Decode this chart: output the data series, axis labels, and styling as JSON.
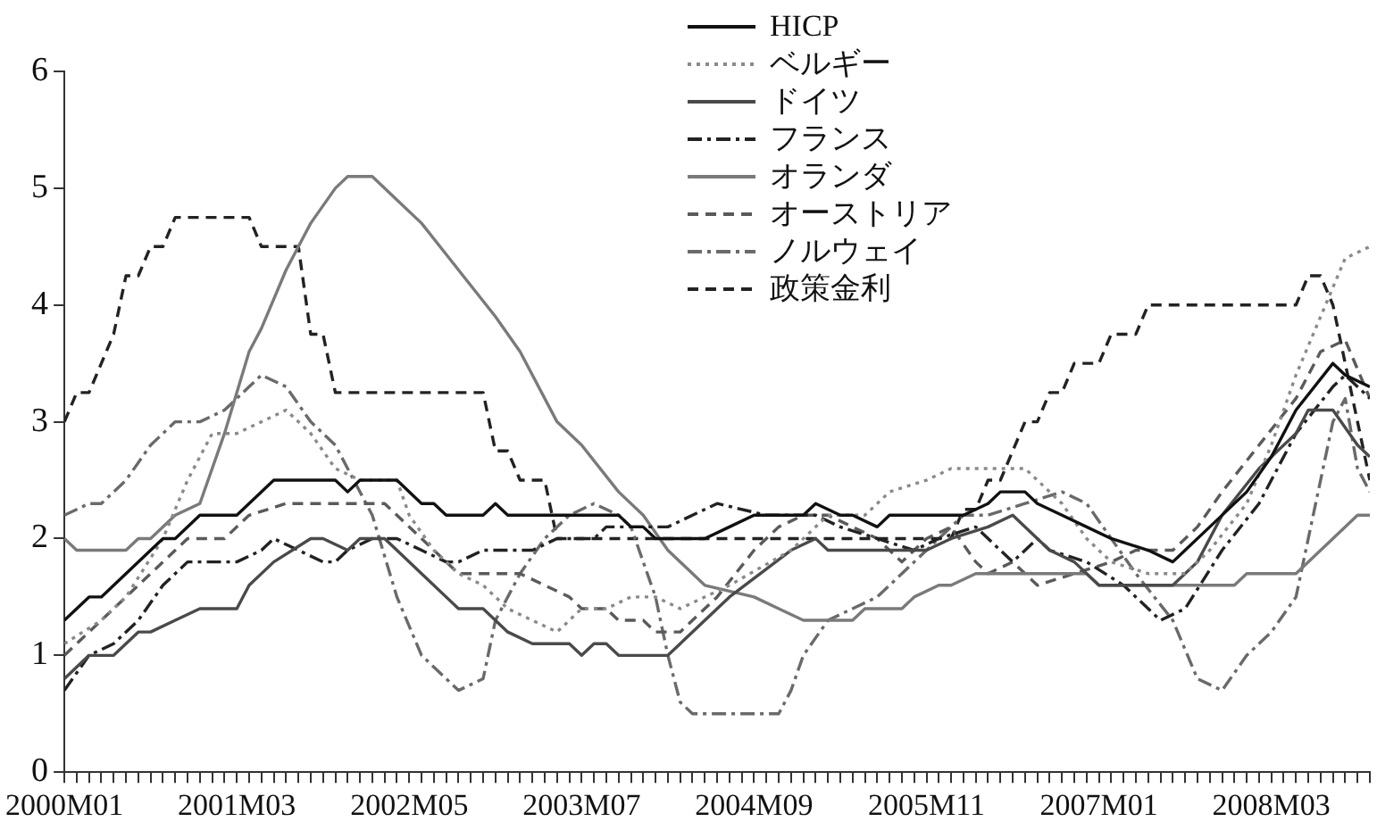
{
  "chart_data": {
    "type": "line",
    "legend": "top",
    "grid": false,
    "marker": "none",
    "xlim": [
      "2000-01",
      "2008-11"
    ],
    "ylim": [
      0,
      6
    ],
    "yticks": [
      0,
      1,
      2,
      3,
      4,
      5,
      6
    ],
    "xticks": [
      {
        "value": "2000-01",
        "label": "2000M01"
      },
      {
        "value": "2000-02",
        "label": null
      },
      {
        "value": "2000-03",
        "label": null
      },
      {
        "value": "2000-04",
        "label": null
      },
      {
        "value": "2000-05",
        "label": null
      },
      {
        "value": "2000-06",
        "label": null
      },
      {
        "value": "2000-07",
        "label": null
      },
      {
        "value": "2000-08",
        "label": null
      },
      {
        "value": "2000-09",
        "label": null
      },
      {
        "value": "2000-10",
        "label": null
      },
      {
        "value": "2000-11",
        "label": null
      },
      {
        "value": "2000-12",
        "label": null
      },
      {
        "value": "2001-01",
        "label": null
      },
      {
        "value": "2001-02",
        "label": null
      },
      {
        "value": "2001-03",
        "label": "2001M03"
      },
      {
        "value": "2001-04",
        "label": null
      },
      {
        "value": "2001-05",
        "label": null
      },
      {
        "value": "2001-06",
        "label": null
      },
      {
        "value": "2001-07",
        "label": null
      },
      {
        "value": "2001-08",
        "label": null
      },
      {
        "value": "2001-09",
        "label": null
      },
      {
        "value": "2001-10",
        "label": null
      },
      {
        "value": "2001-11",
        "label": null
      },
      {
        "value": "2001-12",
        "label": null
      },
      {
        "value": "2002-01",
        "label": null
      },
      {
        "value": "2002-02",
        "label": null
      },
      {
        "value": "2002-03",
        "label": null
      },
      {
        "value": "2002-04",
        "label": null
      },
      {
        "value": "2002-05",
        "label": "2002M05"
      },
      {
        "value": "2002-06",
        "label": null
      },
      {
        "value": "2002-07",
        "label": null
      },
      {
        "value": "2002-08",
        "label": null
      },
      {
        "value": "2002-09",
        "label": null
      },
      {
        "value": "2002-10",
        "label": null
      },
      {
        "value": "2002-11",
        "label": null
      },
      {
        "value": "2002-12",
        "label": null
      },
      {
        "value": "2003-01",
        "label": null
      },
      {
        "value": "2003-02",
        "label": null
      },
      {
        "value": "2003-03",
        "label": null
      },
      {
        "value": "2003-04",
        "label": null
      },
      {
        "value": "2003-05",
        "label": null
      },
      {
        "value": "2003-06",
        "label": null
      },
      {
        "value": "2003-07",
        "label": "2003M07"
      },
      {
        "value": "2003-08",
        "label": null
      },
      {
        "value": "2003-09",
        "label": null
      },
      {
        "value": "2003-10",
        "label": null
      },
      {
        "value": "2003-11",
        "label": null
      },
      {
        "value": "2003-12",
        "label": null
      },
      {
        "value": "2004-01",
        "label": null
      },
      {
        "value": "2004-02",
        "label": null
      },
      {
        "value": "2004-03",
        "label": null
      },
      {
        "value": "2004-04",
        "label": null
      },
      {
        "value": "2004-05",
        "label": null
      },
      {
        "value": "2004-06",
        "label": null
      },
      {
        "value": "2004-07",
        "label": null
      },
      {
        "value": "2004-08",
        "label": null
      },
      {
        "value": "2004-09",
        "label": "2004M09"
      },
      {
        "value": "2004-10",
        "label": null
      },
      {
        "value": "2004-11",
        "label": null
      },
      {
        "value": "2004-12",
        "label": null
      },
      {
        "value": "2005-01",
        "label": null
      },
      {
        "value": "2005-02",
        "label": null
      },
      {
        "value": "2005-03",
        "label": null
      },
      {
        "value": "2005-04",
        "label": null
      },
      {
        "value": "2005-05",
        "label": null
      },
      {
        "value": "2005-06",
        "label": null
      },
      {
        "value": "2005-07",
        "label": null
      },
      {
        "value": "2005-08",
        "label": null
      },
      {
        "value": "2005-09",
        "label": null
      },
      {
        "value": "2005-10",
        "label": null
      },
      {
        "value": "2005-11",
        "label": "2005M11"
      },
      {
        "value": "2005-12",
        "label": null
      },
      {
        "value": "2006-01",
        "label": null
      },
      {
        "value": "2006-02",
        "label": null
      },
      {
        "value": "2006-03",
        "label": null
      },
      {
        "value": "2006-04",
        "label": null
      },
      {
        "value": "2006-05",
        "label": null
      },
      {
        "value": "2006-06",
        "label": null
      },
      {
        "value": "2006-07",
        "label": null
      },
      {
        "value": "2006-08",
        "label": null
      },
      {
        "value": "2006-09",
        "label": null
      },
      {
        "value": "2006-10",
        "label": null
      },
      {
        "value": "2006-11",
        "label": null
      },
      {
        "value": "2006-12",
        "label": null
      },
      {
        "value": "2007-01",
        "label": "2007M01"
      },
      {
        "value": "2007-02",
        "label": null
      },
      {
        "value": "2007-03",
        "label": null
      },
      {
        "value": "2007-04",
        "label": null
      },
      {
        "value": "2007-05",
        "label": null
      },
      {
        "value": "2007-06",
        "label": null
      },
      {
        "value": "2007-07",
        "label": null
      },
      {
        "value": "2007-08",
        "label": null
      },
      {
        "value": "2007-09",
        "label": null
      },
      {
        "value": "2007-10",
        "label": null
      },
      {
        "value": "2007-11",
        "label": null
      },
      {
        "value": "2007-12",
        "label": null
      },
      {
        "value": "2008-01",
        "label": null
      },
      {
        "value": "2008-02",
        "label": null
      },
      {
        "value": "2008-03",
        "label": "2008M03"
      },
      {
        "value": "2008-04",
        "label": null
      },
      {
        "value": "2008-05",
        "label": null
      },
      {
        "value": "2008-06",
        "label": null
      },
      {
        "value": "2008-07",
        "label": null
      },
      {
        "value": "2008-08",
        "label": null
      },
      {
        "value": "2008-09",
        "label": null
      },
      {
        "value": "2008-10",
        "label": null
      },
      {
        "value": "2008-11",
        "label": null
      }
    ],
    "series": [
      {
        "name": "HICP",
        "color": "#111111",
        "line_style": "solid",
        "x": [
          "2000-01",
          "2000-03",
          "2000-04",
          "2000-06",
          "2000-09",
          "2000-10",
          "2000-12",
          "2001-03",
          "2001-06",
          "2001-11",
          "2001-12",
          "2002-01",
          "2002-04",
          "2002-06",
          "2002-07",
          "2002-08",
          "2002-11",
          "2002-12",
          "2003-01",
          "2003-10",
          "2003-11",
          "2003-12",
          "2004-01",
          "2004-05",
          "2004-07",
          "2004-09",
          "2005-01",
          "2005-02",
          "2005-04",
          "2005-05",
          "2005-07",
          "2005-08",
          "2006-02",
          "2006-04",
          "2006-05",
          "2006-07",
          "2006-08",
          "2006-10",
          "2006-12",
          "2007-02",
          "2007-05",
          "2007-07",
          "2007-08",
          "2007-10",
          "2008-01",
          "2008-03",
          "2008-05",
          "2008-08",
          "2008-09",
          "2008-11"
        ],
        "values": [
          1.3,
          1.5,
          1.5,
          1.7,
          2.0,
          2.0,
          2.2,
          2.2,
          2.5,
          2.5,
          2.4,
          2.5,
          2.5,
          2.3,
          2.3,
          2.2,
          2.2,
          2.3,
          2.2,
          2.2,
          2.1,
          2.1,
          2.0,
          2.0,
          2.1,
          2.2,
          2.2,
          2.3,
          2.2,
          2.2,
          2.1,
          2.2,
          2.2,
          2.3,
          2.4,
          2.4,
          2.3,
          2.2,
          2.1,
          2.0,
          1.9,
          1.8,
          1.9,
          2.1,
          2.4,
          2.7,
          3.1,
          3.5,
          3.4,
          3.3
        ]
      },
      {
        "name": "ベルギー",
        "color": "#8a8a8a",
        "line_style": "dotted",
        "x": [
          "2000-01",
          "2000-04",
          "2000-06",
          "2000-09",
          "2000-11",
          "2001-01",
          "2001-03",
          "2001-05",
          "2001-07",
          "2001-09",
          "2001-11",
          "2002-01",
          "2002-04",
          "2002-05",
          "2002-07",
          "2002-09",
          "2002-11",
          "2003-01",
          "2003-03",
          "2003-05",
          "2003-06",
          "2003-07",
          "2003-09",
          "2003-11",
          "2004-01",
          "2004-03",
          "2004-07",
          "2004-12",
          "2005-03",
          "2005-06",
          "2005-08",
          "2005-11",
          "2006-01",
          "2006-07",
          "2006-08",
          "2006-10",
          "2006-12",
          "2007-02",
          "2007-05",
          "2007-08",
          "2007-10",
          "2008-01",
          "2008-03",
          "2008-05",
          "2008-07",
          "2008-09",
          "2008-11"
        ],
        "values": [
          1.1,
          1.3,
          1.5,
          2.0,
          2.5,
          2.9,
          2.9,
          3.0,
          3.1,
          2.9,
          2.6,
          2.5,
          2.5,
          2.2,
          1.9,
          1.7,
          1.6,
          1.4,
          1.3,
          1.2,
          1.3,
          1.4,
          1.4,
          1.5,
          1.5,
          1.4,
          1.6,
          1.9,
          2.2,
          2.2,
          2.4,
          2.5,
          2.6,
          2.6,
          2.5,
          2.3,
          2.0,
          1.8,
          1.7,
          1.7,
          1.9,
          2.3,
          2.8,
          3.4,
          3.9,
          4.4,
          4.5
        ]
      },
      {
        "name": "ドイツ",
        "color": "#4a4a4a",
        "line_style": "solid",
        "x": [
          "2000-01",
          "2000-03",
          "2000-05",
          "2000-07",
          "2000-08",
          "2000-10",
          "2000-12",
          "2001-03",
          "2001-04",
          "2001-06",
          "2001-09",
          "2001-10",
          "2001-12",
          "2002-01",
          "2002-03",
          "2002-04",
          "2002-06",
          "2002-09",
          "2002-11",
          "2003-01",
          "2003-03",
          "2003-06",
          "2003-07",
          "2003-08",
          "2003-09",
          "2003-10",
          "2004-02",
          "2004-07",
          "2004-12",
          "2005-02",
          "2005-03",
          "2005-11",
          "2006-01",
          "2006-04",
          "2006-06",
          "2006-08",
          "2006-09",
          "2006-11",
          "2007-01",
          "2007-07",
          "2007-09",
          "2007-11",
          "2008-02",
          "2008-05",
          "2008-06",
          "2008-08",
          "2008-10",
          "2008-11"
        ],
        "values": [
          0.8,
          1.0,
          1.0,
          1.2,
          1.2,
          1.3,
          1.4,
          1.4,
          1.6,
          1.8,
          2.0,
          2.0,
          1.9,
          2.0,
          2.0,
          1.9,
          1.7,
          1.4,
          1.4,
          1.2,
          1.1,
          1.1,
          1.0,
          1.1,
          1.1,
          1.0,
          1.0,
          1.5,
          1.9,
          2.0,
          1.9,
          1.9,
          2.0,
          2.1,
          2.2,
          2.0,
          1.9,
          1.8,
          1.6,
          1.6,
          1.8,
          2.2,
          2.6,
          2.9,
          3.1,
          3.1,
          2.8,
          2.7
        ]
      },
      {
        "name": "フランス",
        "color": "#222222",
        "line_style": "dashdot",
        "x": [
          "2000-01",
          "2000-03",
          "2000-05",
          "2000-07",
          "2000-09",
          "2000-11",
          "2001-03",
          "2001-05",
          "2001-06",
          "2001-08",
          "2001-10",
          "2001-11",
          "2001-12",
          "2002-02",
          "2002-04",
          "2002-06",
          "2002-08",
          "2002-09",
          "2002-11",
          "2003-03",
          "2003-05",
          "2003-08",
          "2003-09",
          "2004-02",
          "2004-06",
          "2004-10",
          "2005-02",
          "2005-04",
          "2005-07",
          "2005-10",
          "2005-12",
          "2006-03",
          "2006-05",
          "2006-06",
          "2006-08",
          "2006-09",
          "2006-12",
          "2007-03",
          "2007-06",
          "2007-08",
          "2007-11",
          "2008-02",
          "2008-05",
          "2008-08",
          "2008-09",
          "2008-11"
        ],
        "values": [
          0.7,
          1.0,
          1.1,
          1.3,
          1.6,
          1.8,
          1.8,
          1.9,
          2.0,
          1.9,
          1.8,
          1.8,
          1.9,
          2.0,
          2.0,
          1.9,
          1.8,
          1.8,
          1.9,
          1.9,
          2.0,
          2.0,
          2.1,
          2.1,
          2.3,
          2.2,
          2.2,
          2.1,
          2.0,
          1.9,
          2.0,
          2.1,
          1.9,
          1.8,
          2.0,
          1.9,
          1.8,
          1.6,
          1.3,
          1.4,
          1.9,
          2.3,
          2.9,
          3.3,
          3.4,
          3.2
        ]
      },
      {
        "name": "オランダ",
        "color": "#7a7a7a",
        "line_style": "solid",
        "x": [
          "2000-01",
          "2000-02",
          "2000-06",
          "2000-07",
          "2000-08",
          "2000-10",
          "2000-12",
          "2001-02",
          "2001-04",
          "2001-05",
          "2001-07",
          "2001-09",
          "2001-11",
          "2001-12",
          "2002-02",
          "2002-04",
          "2002-06",
          "2002-09",
          "2002-12",
          "2003-02",
          "2003-05",
          "2003-07",
          "2003-10",
          "2003-12",
          "2004-02",
          "2004-05",
          "2004-09",
          "2004-11",
          "2005-01",
          "2005-05",
          "2005-06",
          "2005-09",
          "2005-10",
          "2005-12",
          "2006-01",
          "2006-03",
          "2006-12",
          "2007-01",
          "2007-12",
          "2008-01",
          "2008-05",
          "2008-08",
          "2008-10",
          "2008-11"
        ],
        "values": [
          2.0,
          1.9,
          1.9,
          2.0,
          2.0,
          2.2,
          2.3,
          2.9,
          3.6,
          3.8,
          4.3,
          4.7,
          5.0,
          5.1,
          5.1,
          4.9,
          4.7,
          4.3,
          3.9,
          3.6,
          3.0,
          2.8,
          2.4,
          2.2,
          1.9,
          1.6,
          1.5,
          1.4,
          1.3,
          1.3,
          1.4,
          1.4,
          1.5,
          1.6,
          1.6,
          1.7,
          1.7,
          1.6,
          1.6,
          1.7,
          1.7,
          2.0,
          2.2,
          2.2
        ]
      },
      {
        "name": "オーストリア",
        "color": "#5a5a5a",
        "line_style": "dashed",
        "x": [
          "2000-01",
          "2000-04",
          "2000-07",
          "2000-10",
          "2000-11",
          "2001-02",
          "2001-04",
          "2001-07",
          "2002-03",
          "2002-04",
          "2002-06",
          "2002-08",
          "2002-09",
          "2003-02",
          "2003-04",
          "2003-06",
          "2003-07",
          "2003-09",
          "2003-10",
          "2003-12",
          "2004-01",
          "2004-03",
          "2004-06",
          "2004-09",
          "2004-11",
          "2005-01",
          "2005-03",
          "2005-05",
          "2005-07",
          "2005-09",
          "2005-11",
          "2006-01",
          "2006-03",
          "2006-04",
          "2006-06",
          "2006-08",
          "2006-11",
          "2007-02",
          "2007-04",
          "2007-07",
          "2007-09",
          "2007-11",
          "2008-02",
          "2008-05",
          "2008-07",
          "2008-09",
          "2008-11"
        ],
        "values": [
          1.0,
          1.3,
          1.6,
          1.9,
          2.0,
          2.0,
          2.2,
          2.3,
          2.3,
          2.2,
          2.0,
          1.8,
          1.7,
          1.7,
          1.6,
          1.5,
          1.4,
          1.4,
          1.3,
          1.3,
          1.2,
          1.2,
          1.5,
          1.9,
          2.1,
          2.2,
          2.2,
          2.1,
          2.0,
          1.8,
          2.0,
          2.1,
          1.8,
          1.7,
          1.8,
          1.6,
          1.7,
          1.8,
          1.9,
          1.9,
          2.1,
          2.4,
          2.8,
          3.2,
          3.6,
          3.7,
          3.2
        ]
      },
      {
        "name": "ノルウェイ",
        "color": "#6a6a6a",
        "line_style": "dashdot",
        "x": [
          "2000-01",
          "2000-03",
          "2000-04",
          "2000-06",
          "2000-08",
          "2000-10",
          "2000-12",
          "2001-02",
          "2001-04",
          "2001-05",
          "2001-07",
          "2001-09",
          "2001-11",
          "2001-12",
          "2002-02",
          "2002-04",
          "2002-06",
          "2002-08",
          "2002-09",
          "2002-11",
          "2002-12",
          "2003-02",
          "2003-04",
          "2003-06",
          "2003-08",
          "2003-10",
          "2003-11",
          "2004-01",
          "2004-02",
          "2004-03",
          "2004-04",
          "2004-11",
          "2004-12",
          "2005-01",
          "2005-03",
          "2005-05",
          "2005-07",
          "2005-10",
          "2006-01",
          "2006-02",
          "2006-04",
          "2006-07",
          "2006-10",
          "2006-12",
          "2007-02",
          "2007-04",
          "2007-07",
          "2007-09",
          "2007-11",
          "2008-01",
          "2008-03",
          "2008-05",
          "2008-06",
          "2008-07",
          "2008-08",
          "2008-09",
          "2008-10",
          "2008-11"
        ],
        "values": [
          2.2,
          2.3,
          2.3,
          2.5,
          2.8,
          3.0,
          3.0,
          3.1,
          3.3,
          3.4,
          3.3,
          3.0,
          2.8,
          2.6,
          2.2,
          1.5,
          1.0,
          0.8,
          0.7,
          0.8,
          1.3,
          1.7,
          2.0,
          2.2,
          2.3,
          2.2,
          2.1,
          1.5,
          1.0,
          0.6,
          0.5,
          0.5,
          0.7,
          1.0,
          1.3,
          1.4,
          1.5,
          1.8,
          2.1,
          2.2,
          2.2,
          2.3,
          2.4,
          2.3,
          2.0,
          1.7,
          1.3,
          0.8,
          0.7,
          1.0,
          1.2,
          1.5,
          2.0,
          2.5,
          3.0,
          3.2,
          2.6,
          2.4
        ]
      },
      {
        "name": "政策金利",
        "color": "#222222",
        "line_style": "dashed",
        "x": [
          "2000-01",
          "2000-02",
          "2000-03",
          "2000-04",
          "2000-05",
          "2000-06",
          "2000-07",
          "2000-08",
          "2000-09",
          "2000-10",
          "2001-04",
          "2001-05",
          "2001-08",
          "2001-09",
          "2001-10",
          "2001-11",
          "2002-11",
          "2002-12",
          "2003-01",
          "2003-02",
          "2003-04",
          "2003-05",
          "2006-01",
          "2006-02",
          "2006-03",
          "2006-04",
          "2006-05",
          "2006-06",
          "2006-07",
          "2006-08",
          "2006-09",
          "2006-10",
          "2006-11",
          "2007-01",
          "2007-02",
          "2007-04",
          "2007-05",
          "2008-05",
          "2008-06",
          "2008-07",
          "2008-08",
          "2008-09",
          "2008-10",
          "2008-11"
        ],
        "values": [
          3.0,
          3.25,
          3.25,
          3.5,
          3.75,
          4.25,
          4.25,
          4.5,
          4.5,
          4.75,
          4.75,
          4.5,
          4.5,
          3.75,
          3.75,
          3.25,
          3.25,
          2.75,
          2.75,
          2.5,
          2.5,
          2.0,
          2.0,
          2.25,
          2.25,
          2.5,
          2.5,
          2.75,
          3.0,
          3.0,
          3.25,
          3.25,
          3.5,
          3.5,
          3.75,
          3.75,
          4.0,
          4.0,
          4.25,
          4.25,
          4.0,
          3.5,
          3.0,
          2.5
        ]
      }
    ]
  }
}
